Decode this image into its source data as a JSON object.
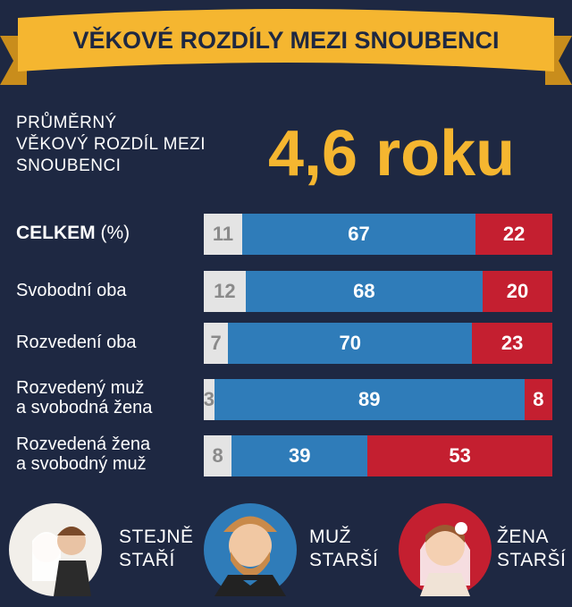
{
  "chart_data": {
    "type": "bar",
    "orientation": "horizontal",
    "stacked": true,
    "title": "VĚKOVÉ ROZDÍLY MEZI SNOUBENCI",
    "subtitle": "PRŮMĚRNÝ\nVĚKOVÝ ROZDÍL MEZI\nSNOUBENCI",
    "headline": "4,6 roku",
    "unit_label": "(%)",
    "categories": [
      "CELKEM",
      "Svobodní oba",
      "Rozvedení oba",
      "Rozvedený muž\na svobodná žena",
      "Rozvedená žena\na svobodný muž"
    ],
    "xlim": [
      0,
      100
    ],
    "series": [
      {
        "name": "STEJNĚ\nSTAŘÍ",
        "color": "#e4e4e4",
        "label_color": "#8a8a8a",
        "values": [
          11,
          12,
          7,
          3,
          8
        ]
      },
      {
        "name": "MUŽ\nSTARŠÍ",
        "color": "#2f7cb9",
        "label_color": "#ffffff",
        "values": [
          67,
          68,
          70,
          89,
          39
        ]
      },
      {
        "name": "ŽENA\nSTARŠÍ",
        "color": "#c41f30",
        "label_color": "#ffffff",
        "values": [
          22,
          20,
          23,
          8,
          53
        ]
      }
    ]
  }
}
